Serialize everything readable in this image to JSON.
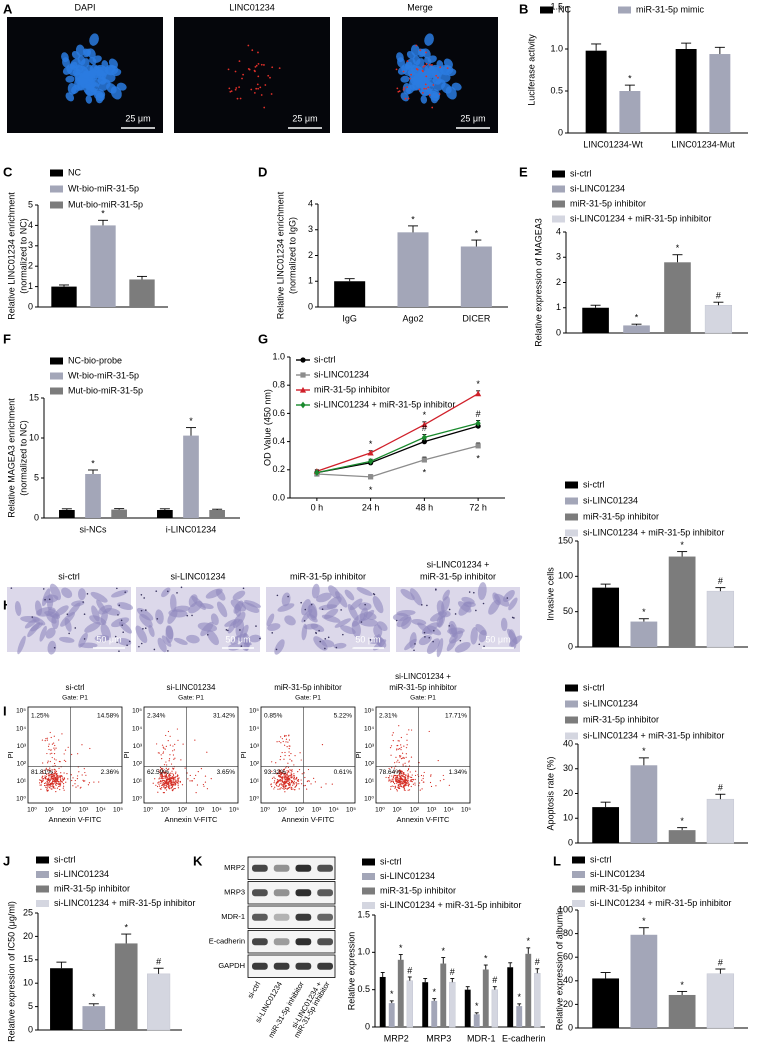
{
  "chart_data": [
    {
      "type": "bar",
      "panel": "B",
      "ylabel": "Luciferase activity",
      "categories": [
        "LINC01234-Wt",
        "LINC01234-Mut"
      ],
      "series": [
        {
          "name": "NC",
          "color": "#000000",
          "values": [
            0.98,
            1.0
          ],
          "errors": [
            0.08,
            0.07
          ],
          "marks": [
            null,
            null
          ]
        },
        {
          "name": "miR-31-5p mimic",
          "color": "#a3a6b8",
          "values": [
            0.5,
            0.94
          ],
          "errors": [
            0.07,
            0.08
          ],
          "marks": [
            "*",
            null
          ]
        }
      ],
      "ylim": [
        0,
        1.5
      ],
      "yticks": [
        0,
        0.5,
        {
          "value": 1,
          "label": "1.0"
        },
        1.5
      ]
    },
    {
      "type": "bar",
      "panel": "C",
      "ylabel": [
        "Relative LINC01234 enrichment",
        "(normalized to NC)"
      ],
      "categories": [
        null
      ],
      "series": [
        {
          "name": "NC",
          "color": "#000000",
          "values": [
            1.0
          ],
          "errors": [
            0.08
          ],
          "marks": [
            null
          ]
        },
        {
          "name": "Wt-bio-miR-31-5p",
          "color": "#a3a6b8",
          "values": [
            4.0
          ],
          "errors": [
            0.25
          ],
          "marks": [
            "*"
          ]
        },
        {
          "name": "Mut-bio-miR-31-5p",
          "color": "#7c7c7c",
          "values": [
            1.35
          ],
          "errors": [
            0.15
          ],
          "marks": [
            null
          ]
        }
      ],
      "ylim": [
        0,
        5
      ],
      "yticks": [
        0,
        1,
        2,
        3,
        4,
        5
      ]
    },
    {
      "type": "bar",
      "panel": "D",
      "ylabel": [
        "Relative LINC01234 enrichment",
        "(normalized to IgG)"
      ],
      "categories": [
        "IgG",
        "Ago2",
        "DICER"
      ],
      "values": [
        1.0,
        2.9,
        2.35
      ],
      "errors": [
        0.1,
        0.25,
        0.25
      ],
      "marks": [
        null,
        "*",
        "*"
      ],
      "colors": [
        "#000000",
        "#a3a6b8",
        "#a3a6b8"
      ],
      "ylim": [
        0,
        4
      ],
      "yticks": [
        0,
        1,
        2,
        3,
        4
      ]
    },
    {
      "type": "bar",
      "panel": "E",
      "ylabel": "Relative expression of MAGEA3",
      "categories": [
        null
      ],
      "series": [
        {
          "name": "si-ctrl",
          "color": "#000000",
          "values": [
            1.0
          ],
          "errors": [
            0.1
          ],
          "marks": [
            null
          ]
        },
        {
          "name": "si-LINC01234",
          "color": "#a3a6b8",
          "values": [
            0.3
          ],
          "errors": [
            0.05
          ],
          "marks": [
            "*"
          ]
        },
        {
          "name": "miR-31-5p inhibitor",
          "color": "#7c7c7c",
          "values": [
            2.8
          ],
          "errors": [
            0.3
          ],
          "marks": [
            "*"
          ]
        },
        {
          "name": "si-LINC01234 + miR-31-5p inhibitor",
          "color": "#d4d6e0",
          "values": [
            1.1
          ],
          "errors": [
            0.12
          ],
          "marks": [
            "#"
          ]
        }
      ],
      "ylim": [
        0,
        4
      ],
      "yticks": [
        0,
        1,
        2,
        3,
        4
      ]
    },
    {
      "type": "bar",
      "panel": "F",
      "ylabel": [
        "Relative MAGEA3 enrichment",
        "(normalized to NC)"
      ],
      "categories": [
        "si-NCs",
        "i-LINC01234"
      ],
      "series": [
        {
          "name": "NC-bio-probe",
          "color": "#000000",
          "values": [
            1.0,
            1.0
          ],
          "errors": [
            0.15,
            0.15
          ],
          "marks": [
            null,
            null
          ]
        },
        {
          "name": "Wt-bio-miR-31-5p",
          "color": "#a3a6b8",
          "values": [
            5.5,
            10.3
          ],
          "errors": [
            0.5,
            1.0
          ],
          "marks": [
            "*",
            "*"
          ]
        },
        {
          "name": "Mut-bio-miR-31-5p",
          "color": "#7c7c7c",
          "values": [
            1.05,
            1.0
          ],
          "errors": [
            0.12,
            0.1
          ],
          "marks": [
            null,
            null
          ]
        }
      ],
      "ylim": [
        0,
        15
      ],
      "yticks": [
        0,
        5,
        10,
        15
      ]
    },
    {
      "type": "line",
      "panel": "G",
      "ylabel": "OD Value (450 nm)",
      "categories": [
        "0 h",
        "24 h",
        "48 h",
        "72 h"
      ],
      "series": [
        {
          "name": "si-ctrl",
          "color": "#000000",
          "marker": "circle",
          "values": [
            0.18,
            0.25,
            0.4,
            0.51
          ],
          "errors": [
            0.01,
            0.015,
            0.02,
            0.02
          ],
          "marks": [
            null,
            null,
            null,
            null
          ]
        },
        {
          "name": "si-LINC01234",
          "color": "#8c8c8c",
          "marker": "square",
          "values": [
            0.17,
            0.15,
            0.27,
            0.37
          ],
          "errors": [
            0.01,
            0.015,
            0.02,
            0.02
          ],
          "marks": [
            null,
            "*",
            "*",
            "*"
          ]
        },
        {
          "name": "miR-31-5p inhibitor",
          "color": "#d0202a",
          "marker": "triangle",
          "values": [
            0.19,
            0.32,
            0.52,
            0.74
          ],
          "errors": [
            0.01,
            0.015,
            0.02,
            0.02
          ],
          "marks": [
            null,
            "*",
            "*",
            "*"
          ]
        },
        {
          "name": "si-LINC01234 + miR-31-5p inhibitor",
          "color": "#1a8a2e",
          "marker": "diamond",
          "values": [
            0.18,
            0.26,
            0.43,
            0.53
          ],
          "errors": [
            0.01,
            0.015,
            0.02,
            0.02
          ],
          "marks": [
            null,
            null,
            "#",
            "#"
          ]
        }
      ],
      "ylim": [
        0,
        1.0
      ],
      "yticks": [
        {
          "value": 0,
          "label": "0.0"
        },
        0.2,
        0.4,
        0.6,
        0.8,
        {
          "value": 1,
          "label": "1.0"
        }
      ]
    },
    {
      "type": "bar",
      "ylabel": "Invasive cells",
      "categories": [
        null
      ],
      "series": [
        {
          "name": "si-ctrl",
          "color": "#000000",
          "values": [
            84
          ],
          "errors": [
            5
          ],
          "marks": [
            null
          ]
        },
        {
          "name": "si-LINC01234",
          "color": "#a3a6b8",
          "values": [
            36
          ],
          "errors": [
            4
          ],
          "marks": [
            "*"
          ]
        },
        {
          "name": "miR-31-5p inhibitor",
          "color": "#7c7c7c",
          "values": [
            128
          ],
          "errors": [
            7
          ],
          "marks": [
            "*"
          ]
        },
        {
          "name": "si-LINC01234 + miR-31-5p inhibitor",
          "color": "#d4d6e0",
          "values": [
            79
          ],
          "errors": [
            5
          ],
          "marks": [
            "#"
          ]
        }
      ],
      "ylim": [
        0,
        150
      ],
      "yticks": [
        0,
        50,
        100,
        150
      ]
    },
    {
      "type": "bar",
      "ylabel": "Apoptosis rate (%)",
      "categories": [
        null
      ],
      "series": [
        {
          "name": "si-ctrl",
          "color": "#000000",
          "values": [
            14.5
          ],
          "errors": [
            2
          ],
          "marks": [
            null
          ]
        },
        {
          "name": "si-LINC01234",
          "color": "#a3a6b8",
          "values": [
            31.4
          ],
          "errors": [
            3
          ],
          "marks": [
            "*"
          ]
        },
        {
          "name": "miR-31-5p inhibitor",
          "color": "#7c7c7c",
          "values": [
            5.2
          ],
          "errors": [
            1
          ],
          "marks": [
            "*"
          ]
        },
        {
          "name": "si-LINC01234 + miR-31-5p inhibitor",
          "color": "#d4d6e0",
          "values": [
            17.7
          ],
          "errors": [
            2
          ],
          "marks": [
            "#"
          ]
        }
      ],
      "ylim": [
        0,
        40
      ],
      "yticks": [
        0,
        10,
        20,
        30,
        40
      ]
    },
    {
      "type": "bar",
      "panel": "J",
      "ylabel": "Relative expression of IC50 (μg/ml)",
      "categories": [
        null
      ],
      "series": [
        {
          "name": "si-ctrl",
          "color": "#000000",
          "values": [
            13.2
          ],
          "errors": [
            1.3
          ],
          "marks": [
            null
          ]
        },
        {
          "name": "si-LINC01234",
          "color": "#a3a6b8",
          "values": [
            5.1
          ],
          "errors": [
            0.5
          ],
          "marks": [
            "*"
          ]
        },
        {
          "name": "miR-31-5p inhibitor",
          "color": "#7c7c7c",
          "values": [
            18.5
          ],
          "errors": [
            2
          ],
          "marks": [
            "*"
          ]
        },
        {
          "name": "si-LINC01234 + miR-31-5p inhibitor",
          "color": "#d4d6e0",
          "values": [
            12.0
          ],
          "errors": [
            1.2
          ],
          "marks": [
            "#"
          ]
        }
      ],
      "ylim": [
        0,
        25
      ],
      "yticks": [
        0,
        5,
        10,
        15,
        20,
        25
      ]
    },
    {
      "type": "bar",
      "ylabel": "Relative expression",
      "categories": [
        "MRP2",
        "MRP3",
        "MDR-1",
        "E-cadherin"
      ],
      "series": [
        {
          "name": "si-ctrl",
          "color": "#000000",
          "values": [
            0.67,
            0.6,
            0.5,
            0.8
          ],
          "errors": [
            0.06,
            0.05,
            0.04,
            0.06
          ],
          "marks": [
            null,
            null,
            null,
            null
          ]
        },
        {
          "name": "si-LINC01234",
          "color": "#a3a6b8",
          "values": [
            0.32,
            0.35,
            0.17,
            0.28
          ],
          "errors": [
            0.03,
            0.03,
            0.02,
            0.03
          ],
          "marks": [
            "*",
            "*",
            "*",
            "*"
          ]
        },
        {
          "name": "miR-31-5p inhibitor",
          "color": "#7c7c7c",
          "values": [
            0.9,
            0.85,
            0.77,
            0.98
          ],
          "errors": [
            0.07,
            0.08,
            0.06,
            0.08
          ],
          "marks": [
            "*",
            "*",
            "*",
            "*"
          ]
        },
        {
          "name": "si-LINC01234 + miR-31-5p inhibitor",
          "color": "#d4d6e0",
          "values": [
            0.62,
            0.6,
            0.5,
            0.72
          ],
          "errors": [
            0.05,
            0.05,
            0.04,
            0.06
          ],
          "marks": [
            "#",
            "#",
            "#",
            "#"
          ]
        }
      ],
      "ylim": [
        0,
        1.5
      ],
      "yticks": [
        0,
        0.5,
        {
          "value": 1,
          "label": "1.0"
        },
        1.5
      ]
    },
    {
      "type": "bar",
      "panel": "L",
      "ylabel": "Relative expression of albumin",
      "categories": [
        null
      ],
      "series": [
        {
          "name": "si-ctrl",
          "color": "#000000",
          "values": [
            42
          ],
          "errors": [
            5
          ],
          "marks": [
            null
          ]
        },
        {
          "name": "si-LINC01234",
          "color": "#a3a6b8",
          "values": [
            79
          ],
          "errors": [
            6
          ],
          "marks": [
            "*"
          ]
        },
        {
          "name": "miR-31-5p inhibitor",
          "color": "#7c7c7c",
          "values": [
            28
          ],
          "errors": [
            3
          ],
          "marks": [
            "*"
          ]
        },
        {
          "name": "si-LINC01234 + miR-31-5p inhibitor",
          "color": "#d4d6e0",
          "values": [
            46
          ],
          "errors": [
            4
          ],
          "marks": [
            "#"
          ]
        }
      ],
      "ylim": [
        0,
        100
      ],
      "yticks": [
        0,
        20,
        40,
        60,
        80,
        100
      ]
    }
  ],
  "micro_a": {
    "panel": "A",
    "titles": [
      "DAPI",
      "LINC01234",
      "Merge"
    ],
    "scale": "25 μm"
  },
  "micro_h": {
    "panel": "H",
    "titles": [
      "si-ctrl",
      "si-LINC01234",
      "miR-31-5p inhibitor",
      [
        "si-LINC01234 +",
        "miR-31-5p inhibitor"
      ]
    ],
    "scale": "50 μm"
  },
  "flow": {
    "panel": "I",
    "ylabel": "PI",
    "xlabel": "Annexin V-FITC",
    "ticks": [
      "10⁰",
      "10¹",
      "10²",
      "10³",
      "10⁴",
      "10⁵"
    ],
    "plots": [
      {
        "title": [
          "si-ctrl"
        ],
        "gate": "Gate: P1",
        "quadrants": [
          "1.25%",
          "14.58%",
          "81.81%",
          "2.36%"
        ]
      },
      {
        "title": [
          "si-LINC01234"
        ],
        "gate": "Gate: P1",
        "quadrants": [
          "2.34%",
          "31.42%",
          "62.59%",
          "3.65%"
        ]
      },
      {
        "title": [
          "miR-31-5p inhibitor"
        ],
        "gate": "Gate: P1",
        "quadrants": [
          "0.85%",
          "5.22%",
          "93.32%",
          "0.61%"
        ]
      },
      {
        "title": [
          "si-LINC01234 +",
          "miR-31-5p inhibitor"
        ],
        "gate": "Gate: P1",
        "quadrants": [
          "2.31%",
          "17.71%",
          "78.64%",
          "1.34%"
        ]
      }
    ]
  },
  "blot": {
    "panel": "K",
    "proteins": [
      "MRP2",
      "MRP3",
      "MDR-1",
      "E-cadherin",
      "GAPDH"
    ],
    "lanes": [
      "si-ctrl",
      "si-LINC01234",
      "miR-31-5p inhibitor",
      [
        "si-LINC01234 +",
        "miR-31-5p inhibitor"
      ]
    ]
  }
}
